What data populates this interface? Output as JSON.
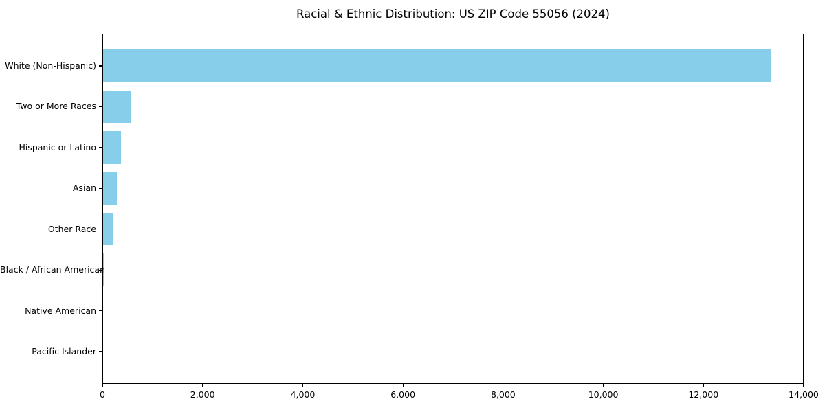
{
  "title": "Racial & Ethnic Distribution: US ZIP Code 55056 (2024)",
  "chart_data": {
    "type": "bar",
    "orientation": "horizontal",
    "title": "Racial & Ethnic Distribution: US ZIP Code 55056 (2024)",
    "xlabel": "",
    "ylabel": "",
    "categories": [
      "White (Non-Hispanic)",
      "Two or More Races",
      "Hispanic or Latino",
      "Asian",
      "Other Race",
      "Black / African American",
      "Native American",
      "Pacific Islander"
    ],
    "values": [
      13330,
      545,
      360,
      280,
      200,
      12,
      0,
      0
    ],
    "xlim": [
      0,
      14000
    ],
    "x_ticks": [
      0,
      2000,
      4000,
      6000,
      8000,
      10000,
      12000,
      14000
    ],
    "x_tick_labels": [
      "0",
      "2,000",
      "4,000",
      "6,000",
      "8,000",
      "10,000",
      "12,000",
      "14,000"
    ],
    "bar_color": "#87CEEB",
    "text_color": "#000000",
    "grid": false,
    "legend": false
  }
}
